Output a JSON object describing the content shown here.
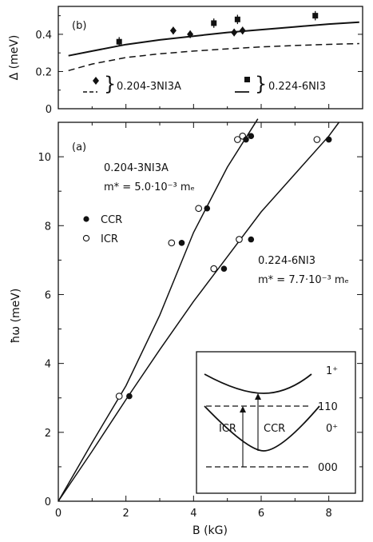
{
  "chart_data": [
    {
      "panel": "b",
      "type": "scatter",
      "panel_label": "(b)",
      "ylabel": "Δ (meV)",
      "xlim": [
        0,
        9
      ],
      "ylim": [
        0,
        0.55
      ],
      "yticks": [
        0,
        0.2,
        0.4
      ],
      "ytick_labels": [
        "0",
        "0.2",
        "0.4"
      ],
      "series": [
        {
          "name": "0.204-3NI3A",
          "marker": "diamond",
          "line_style": "dashed",
          "points": [
            {
              "x": 3.4,
              "y": 0.42,
              "err": 0.02
            },
            {
              "x": 3.9,
              "y": 0.4,
              "err": 0.02
            },
            {
              "x": 5.2,
              "y": 0.41,
              "err": 0.02
            },
            {
              "x": 5.45,
              "y": 0.42,
              "err": 0.02
            }
          ],
          "curve": [
            [
              0.3,
              0.205
            ],
            [
              1,
              0.24
            ],
            [
              2,
              0.275
            ],
            [
              3,
              0.295
            ],
            [
              4,
              0.31
            ],
            [
              5,
              0.322
            ],
            [
              6,
              0.332
            ],
            [
              7,
              0.34
            ],
            [
              8,
              0.346
            ],
            [
              8.9,
              0.35
            ]
          ]
        },
        {
          "name": "0.224-6NI3",
          "marker": "square",
          "line_style": "solid",
          "points": [
            {
              "x": 1.8,
              "y": 0.36,
              "err": 0.025
            },
            {
              "x": 4.6,
              "y": 0.46,
              "err": 0.025
            },
            {
              "x": 5.3,
              "y": 0.48,
              "err": 0.025
            },
            {
              "x": 7.6,
              "y": 0.5,
              "err": 0.025
            }
          ],
          "curve": [
            [
              0.3,
              0.285
            ],
            [
              1,
              0.31
            ],
            [
              2,
              0.345
            ],
            [
              3,
              0.37
            ],
            [
              4,
              0.39
            ],
            [
              5,
              0.41
            ],
            [
              6,
              0.425
            ],
            [
              7,
              0.44
            ],
            [
              8,
              0.455
            ],
            [
              8.9,
              0.465
            ]
          ]
        }
      ]
    },
    {
      "panel": "a",
      "type": "scatter",
      "panel_label": "(a)",
      "xlabel": "B (kG)",
      "ylabel": "ħω (meV)",
      "xlim": [
        0,
        9
      ],
      "ylim": [
        0,
        11
      ],
      "xticks": [
        0,
        2,
        4,
        6,
        8
      ],
      "xtick_labels": [
        "0",
        "2",
        "4",
        "6",
        "8"
      ],
      "yticks": [
        0,
        2,
        4,
        6,
        8,
        10
      ],
      "ytick_labels": [
        "0",
        "2",
        "4",
        "6",
        "8",
        "10"
      ],
      "legend": [
        {
          "label": "CCR",
          "marker": "filled-circle"
        },
        {
          "label": "ICR",
          "marker": "open-circle"
        }
      ],
      "series": [
        {
          "name": "0.204-3NI3A",
          "mass_text": "m* = 5.0·10⁻³ mₑ",
          "ccr": [
            [
              2.1,
              3.05
            ],
            [
              3.65,
              7.5
            ],
            [
              4.4,
              8.5
            ],
            [
              5.55,
              10.5
            ],
            [
              5.7,
              10.6
            ]
          ],
          "icr": [
            [
              1.8,
              3.05
            ],
            [
              3.35,
              7.5
            ],
            [
              4.15,
              8.5
            ],
            [
              5.3,
              10.5
            ],
            [
              5.45,
              10.6
            ]
          ],
          "curve": [
            [
              0,
              0
            ],
            [
              1,
              1.7
            ],
            [
              2,
              3.35
            ],
            [
              3,
              5.4
            ],
            [
              4,
              7.8
            ],
            [
              5,
              9.7
            ],
            [
              5.9,
              11.1
            ]
          ]
        },
        {
          "name": "0.224-6NI3",
          "mass_text": "m* = 7.7·10⁻³ mₑ",
          "ccr": [
            [
              4.9,
              6.75
            ],
            [
              5.7,
              7.6
            ],
            [
              8.0,
              10.5
            ]
          ],
          "icr": [
            [
              4.6,
              6.75
            ],
            [
              5.35,
              7.6
            ],
            [
              7.65,
              10.5
            ]
          ],
          "curve": [
            [
              0,
              0
            ],
            [
              1,
              1.45
            ],
            [
              2,
              2.95
            ],
            [
              3,
              4.4
            ],
            [
              4,
              5.8
            ],
            [
              5,
              7.1
            ],
            [
              6,
              8.4
            ],
            [
              7,
              9.5
            ],
            [
              8,
              10.6
            ],
            [
              8.3,
              11.0
            ]
          ]
        }
      ]
    }
  ],
  "inset": {
    "upper_band_label": "1⁺",
    "lower_band_label": "0⁺",
    "upper_level_label": "110",
    "lower_level_label": "000",
    "icr_label": "ICR",
    "ccr_label": "CCR"
  }
}
